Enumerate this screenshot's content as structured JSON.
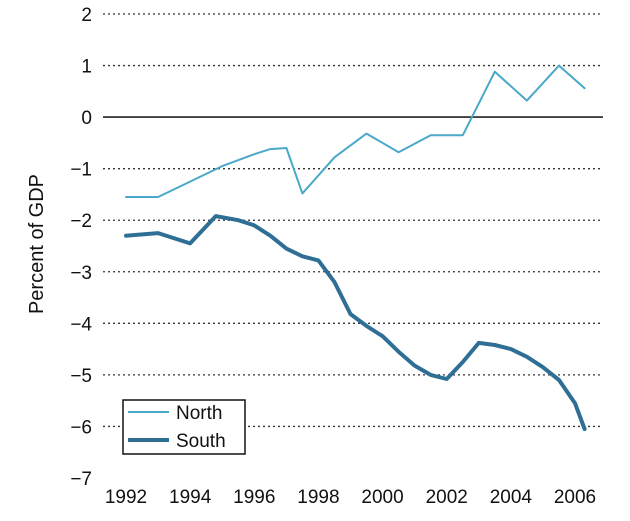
{
  "chart_data": {
    "type": "line",
    "title": "",
    "xlabel": "",
    "ylabel": "Percent of GDP",
    "xlim": [
      1991.8,
      2006.3
    ],
    "ylim": [
      -7,
      2
    ],
    "yticks": [
      2,
      1,
      0,
      -1,
      -2,
      -3,
      -4,
      -5,
      -6,
      -7
    ],
    "ytick_labels": [
      "2",
      "1",
      "0",
      "−1",
      "−2",
      "−3",
      "−4",
      "−5",
      "−6",
      "−7"
    ],
    "xticks": [
      1992,
      1994,
      1996,
      1998,
      2000,
      2002,
      2004,
      2006
    ],
    "xtick_labels": [
      "1992",
      "1994",
      "1996",
      "1998",
      "2000",
      "2002",
      "2004",
      "2006"
    ],
    "grid": "dotted horizontal lines; solid line at 0",
    "legend_position": "bottom-left",
    "series": [
      {
        "name": "North",
        "color": "#4aa8c8",
        "x": [
          1992,
          1993,
          1994,
          1995,
          1996,
          1996.5,
          1997,
          1997.5,
          1998.5,
          1999.5,
          2000.5,
          2001.5,
          2002.5,
          2003.5,
          2004.5,
          2005.5,
          2006.3
        ],
        "values": [
          -1.55,
          -1.55,
          -1.25,
          -0.95,
          -0.72,
          -0.62,
          -0.6,
          -1.48,
          -0.78,
          -0.32,
          -0.68,
          -0.35,
          -0.35,
          0.88,
          0.32,
          1.0,
          0.56
        ]
      },
      {
        "name": "South",
        "color": "#2f6f96",
        "x": [
          1992,
          1993,
          1994,
          1994.8,
          1995.5,
          1996,
          1996.5,
          1997,
          1997.5,
          1998,
          1998.5,
          1999,
          1999.5,
          2000,
          2000.5,
          2001,
          2001.5,
          2002,
          2002.5,
          2003,
          2003.5,
          2004,
          2004.5,
          2005,
          2005.5,
          2006,
          2006.3
        ],
        "values": [
          -2.3,
          -2.25,
          -2.45,
          -1.92,
          -2.0,
          -2.1,
          -2.3,
          -2.55,
          -2.7,
          -2.78,
          -3.2,
          -3.82,
          -4.05,
          -4.25,
          -4.55,
          -4.82,
          -5.0,
          -5.08,
          -4.75,
          -4.38,
          -4.42,
          -4.5,
          -4.65,
          -4.85,
          -5.1,
          -5.55,
          -6.05
        ]
      }
    ]
  }
}
